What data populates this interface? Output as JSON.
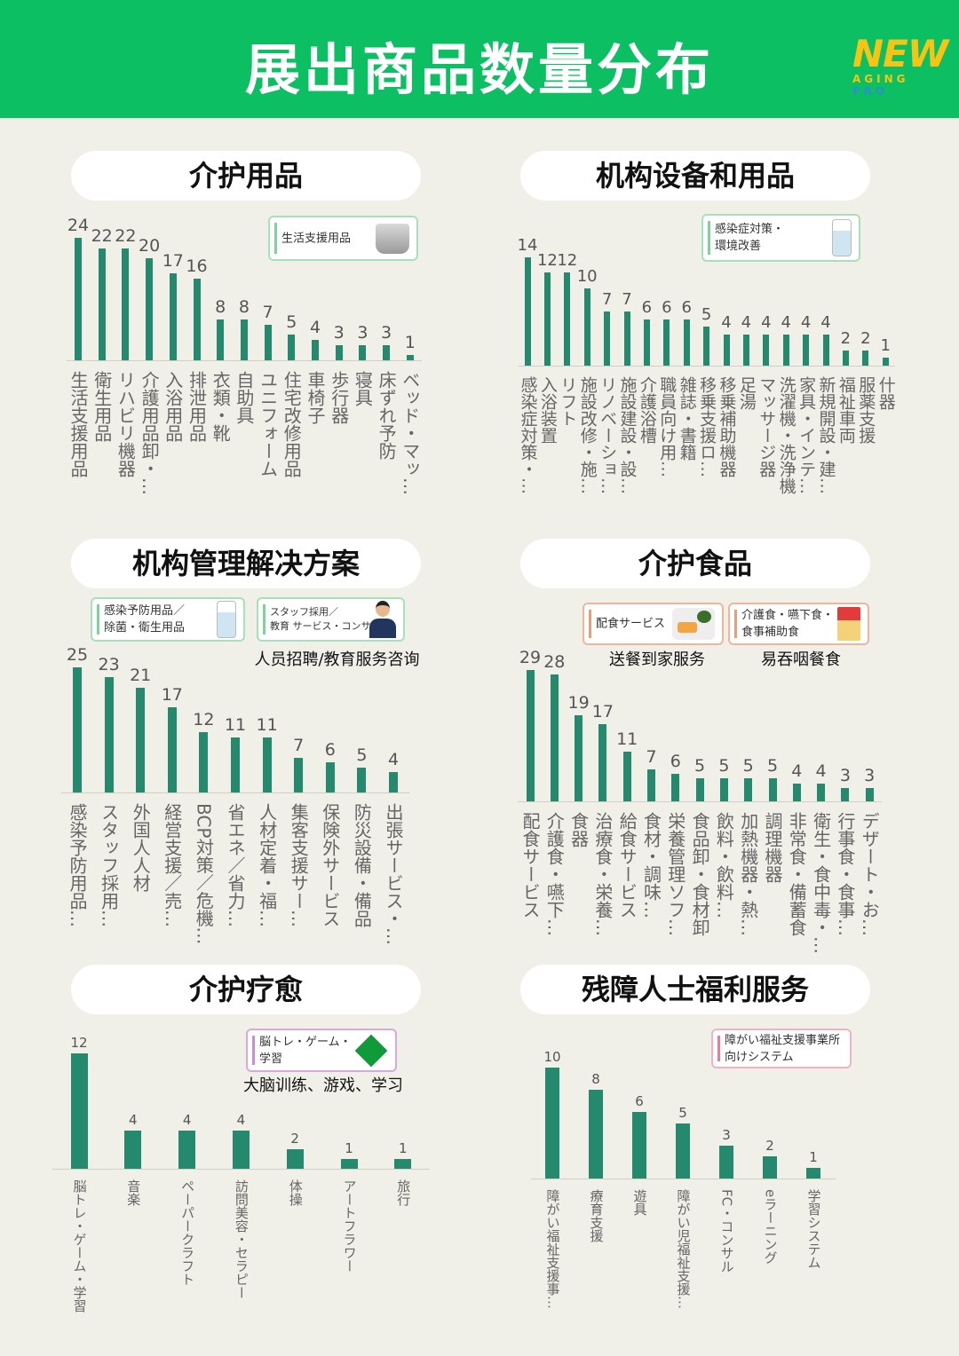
{
  "header": {
    "title": "展出商品数量分布"
  },
  "logo": {
    "main": "NEW",
    "sub_a": "AGING",
    "sub_b": "PRO"
  },
  "colors": {
    "header": "#0cbf63",
    "bar": "#258a6d",
    "background": "#f0efe8",
    "logo": "#f6c415"
  },
  "sections": [
    {
      "cards": [
        {
          "text": "生活支援用品",
          "icon": "diaper-product-icon",
          "color": "#7fd39a"
        }
      ]
    },
    {
      "cards": [
        {
          "text": "感染症対策・\n環境改善",
          "icon": "spray-bottle-icon",
          "color": "#7fd39a"
        }
      ]
    },
    {
      "cards": [
        {
          "text": "感染予防用品／\n除菌・衛生用品",
          "icon": "spray-bottle-icon",
          "color": "#7fd39a"
        },
        {
          "text": "スタッフ採用／\n教育 サービス・コンサル",
          "icon": "businessman-icon",
          "color": "#7fd39a",
          "caption": "人员招聘/教育服务咨询"
        }
      ]
    },
    {
      "cards": [
        {
          "text": "配食サービス",
          "icon": "meal-tray-icon",
          "color": "#f19a78",
          "caption": "送餐到家服务"
        },
        {
          "text": "介護食・嚥下食・\n食事補助食",
          "icon": "food-package-icon",
          "color": "#f19a78",
          "caption": "易吞咽餐食"
        }
      ]
    },
    {
      "cards": [
        {
          "text": "脳トレ・ゲーム・\n学習",
          "icon": "game-board-icon",
          "color": "#c58fd0",
          "caption": "大脑训练、游戏、学习"
        }
      ]
    },
    {
      "cards": [
        {
          "text": "障がい福祉支援事業所\n向けシステム",
          "color": "#e77d9c"
        }
      ]
    }
  ],
  "chart_data": [
    {
      "type": "bar",
      "title": "介护用品",
      "categories": [
        "生活支援用品",
        "衛生用品",
        "リハビリ機器",
        "介護用品卸・…",
        "入浴用品",
        "排泄用品",
        "衣類・靴",
        "自助具",
        "ユニフォーム",
        "住宅改修用品",
        "車椅子",
        "歩行器",
        "寝具",
        "床ずれ予防",
        "ベッド・マッ…"
      ],
      "values": [
        24,
        22,
        22,
        20,
        17,
        16,
        8,
        8,
        7,
        5,
        4,
        3,
        3,
        3,
        1
      ]
    },
    {
      "type": "bar",
      "title": "机构设备和用品",
      "categories": [
        "感染症対策・…",
        "入浴装置",
        "リフト",
        "施設改修・施…",
        "リノベーショ…",
        "施設建設・設…",
        "介護浴槽",
        "職員向け用…",
        "雑誌・書籍",
        "移乗支援ロ…",
        "移乗補助機器",
        "足湯",
        "マッサージ器",
        "洗濯機・洗浄機",
        "家具・インテ…",
        "新規開設・建…",
        "福祉車両",
        "服薬支援",
        "什器"
      ],
      "values": [
        14,
        12,
        12,
        10,
        7,
        7,
        6,
        6,
        6,
        5,
        4,
        4,
        4,
        4,
        4,
        4,
        2,
        2,
        1
      ]
    },
    {
      "type": "bar",
      "title": "机构管理解决方案",
      "categories": [
        "感染予防用品…",
        "スタッフ採用…",
        "外国人人材",
        "経営支援／売…",
        "BCP対策／危機…",
        "省エネ／省力…",
        "人材定着・福…",
        "集客支援サー…",
        "保険外サービス",
        "防災設備・備品",
        "出張サービス・…"
      ],
      "values": [
        25,
        23,
        21,
        17,
        12,
        11,
        11,
        7,
        6,
        5,
        4
      ]
    },
    {
      "type": "bar",
      "title": "介护食品",
      "categories": [
        "配食サービス",
        "介護食・嚥下…",
        "食器",
        "治療食・栄養…",
        "給食サービス",
        "食材・調味…",
        "栄養管理ソフ…",
        "食品卸・食材卸",
        "飲料・飲料…",
        "加熱機器・熱…",
        "調理機器",
        "非常食・備蓄食",
        "衛生・食中毒・…",
        "行事食・食事…",
        "デザート・お…"
      ],
      "values": [
        29,
        28,
        19,
        17,
        11,
        7,
        6,
        5,
        5,
        5,
        5,
        4,
        4,
        3,
        3
      ]
    },
    {
      "type": "bar",
      "title": "介护疗愈",
      "categories": [
        "脳トレ・ゲーム・学習",
        "音楽",
        "ペーパークラフト",
        "訪問美容・セラピー",
        "体操",
        "アートフラワー",
        "旅行"
      ],
      "values": [
        12,
        4,
        4,
        4,
        2,
        1,
        1
      ]
    },
    {
      "type": "bar",
      "title": "残障人士福利服务",
      "categories": [
        "障がい福祉支援事…",
        "療育支援",
        "遊具",
        "障がい児福祉支援…",
        "FC・コンサル",
        "eラーニング",
        "学習システム"
      ],
      "values": [
        10,
        8,
        6,
        5,
        3,
        2,
        1
      ]
    }
  ]
}
